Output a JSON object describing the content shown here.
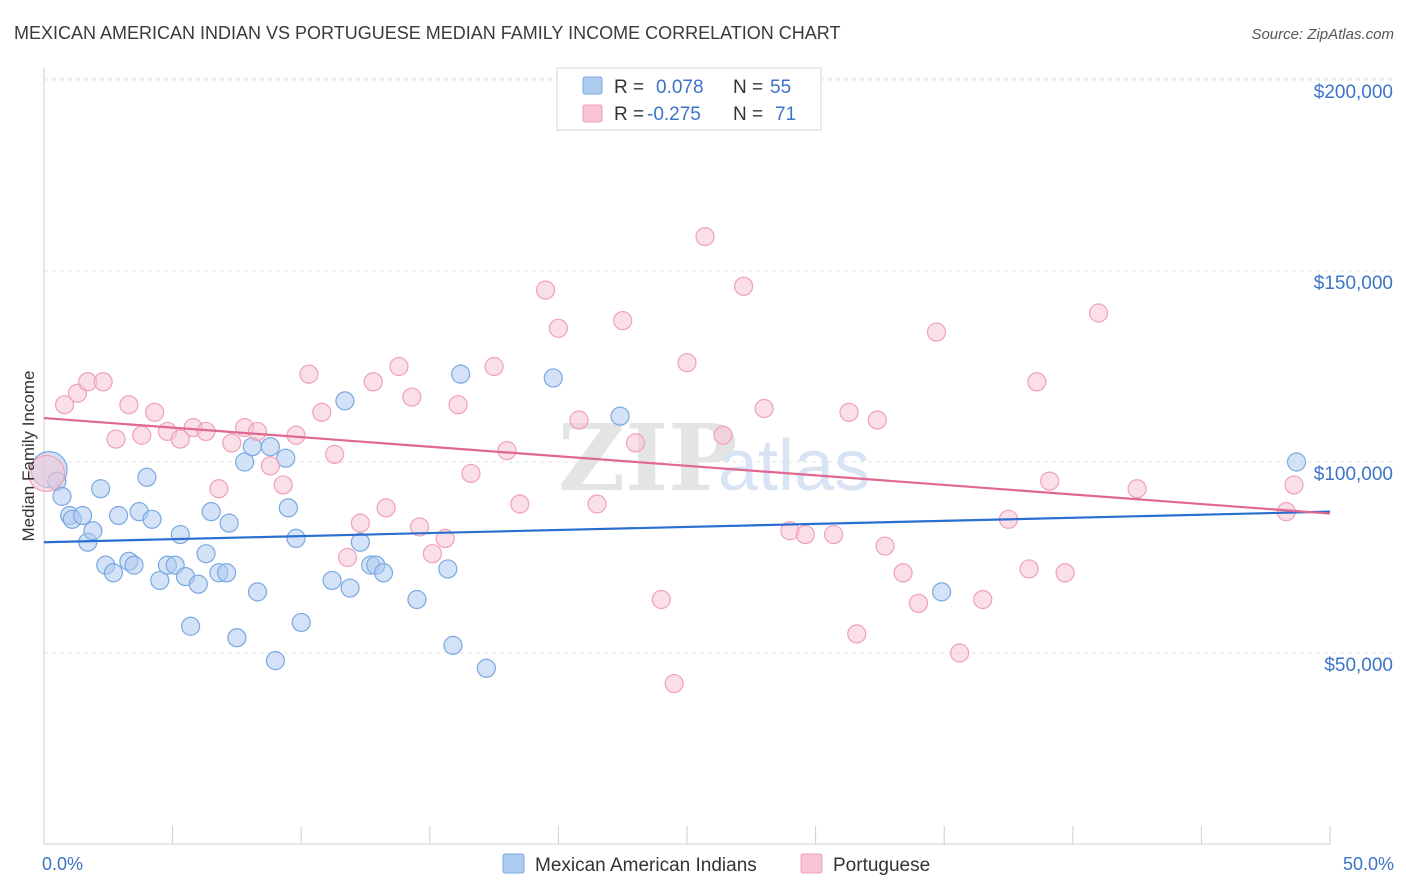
{
  "chart_data": {
    "type": "scatter",
    "title": "MEXICAN AMERICAN INDIAN VS PORTUGUESE MEDIAN FAMILY INCOME CORRELATION CHART",
    "source": "Source: ZipAtlas.com",
    "ylabel": "Median Family Income",
    "xlabel": "",
    "xlim": [
      0,
      50
    ],
    "ylim": [
      0,
      215000
    ],
    "x_tick_labels": [
      "0.0%",
      "50.0%"
    ],
    "y_ticks": [
      50000,
      100000,
      150000,
      200000
    ],
    "y_tick_labels": [
      "$50,000",
      "$100,000",
      "$150,000",
      "$200,000"
    ],
    "grid": true,
    "watermark": "ZIPatlas",
    "legend_top": [
      {
        "r_label": "R =",
        "r_value": "0.078",
        "n_label": "N =",
        "n_value": "55"
      },
      {
        "r_label": "R =",
        "r_value": "-0.275",
        "n_label": "N =",
        "n_value": "71"
      }
    ],
    "series": [
      {
        "name": "Mexican American Indians",
        "color": "#7aa8e0",
        "fill": "#aecbf0",
        "line_color": "#2a6fd0",
        "trend": {
          "x0": 0,
          "y0": 79000,
          "x1": 50,
          "y1": 87000
        },
        "points": [
          [
            0.2,
            98000
          ],
          [
            0.5,
            95000
          ],
          [
            0.7,
            91000
          ],
          [
            1.0,
            86000
          ],
          [
            1.1,
            85000
          ],
          [
            1.5,
            86000
          ],
          [
            1.7,
            79000
          ],
          [
            1.9,
            82000
          ],
          [
            2.2,
            93000
          ],
          [
            2.4,
            73000
          ],
          [
            2.7,
            71000
          ],
          [
            2.9,
            86000
          ],
          [
            3.3,
            74000
          ],
          [
            3.5,
            73000
          ],
          [
            3.7,
            87000
          ],
          [
            4.0,
            96000
          ],
          [
            4.2,
            85000
          ],
          [
            4.5,
            69000
          ],
          [
            4.8,
            73000
          ],
          [
            5.1,
            73000
          ],
          [
            5.3,
            81000
          ],
          [
            5.5,
            70000
          ],
          [
            5.7,
            57000
          ],
          [
            6.0,
            68000
          ],
          [
            6.3,
            76000
          ],
          [
            6.5,
            87000
          ],
          [
            6.8,
            71000
          ],
          [
            7.1,
            71000
          ],
          [
            7.2,
            84000
          ],
          [
            7.5,
            54000
          ],
          [
            7.8,
            100000
          ],
          [
            8.1,
            104000
          ],
          [
            8.3,
            66000
          ],
          [
            8.8,
            104000
          ],
          [
            9.0,
            48000
          ],
          [
            9.4,
            101000
          ],
          [
            9.5,
            88000
          ],
          [
            9.8,
            80000
          ],
          [
            10.0,
            58000
          ],
          [
            11.2,
            69000
          ],
          [
            11.7,
            116000
          ],
          [
            11.9,
            67000
          ],
          [
            12.3,
            79000
          ],
          [
            12.7,
            73000
          ],
          [
            12.9,
            73000
          ],
          [
            13.2,
            71000
          ],
          [
            14.5,
            64000
          ],
          [
            15.7,
            72000
          ],
          [
            15.9,
            52000
          ],
          [
            16.2,
            123000
          ],
          [
            17.2,
            46000
          ],
          [
            19.8,
            122000
          ],
          [
            22.4,
            112000
          ],
          [
            34.9,
            66000
          ],
          [
            48.7,
            100000
          ]
        ]
      },
      {
        "name": "Portuguese",
        "color": "#f0a0b8",
        "fill": "#f8c4d4",
        "line_color": "#e06890",
        "trend": {
          "x0": 0,
          "y0": 111500,
          "x1": 50,
          "y1": 86500
        },
        "points": [
          [
            0.1,
            97000
          ],
          [
            0.8,
            115000
          ],
          [
            1.3,
            118000
          ],
          [
            1.7,
            121000
          ],
          [
            2.3,
            121000
          ],
          [
            2.8,
            106000
          ],
          [
            3.3,
            115000
          ],
          [
            3.8,
            107000
          ],
          [
            4.3,
            113000
          ],
          [
            4.8,
            108000
          ],
          [
            5.3,
            106000
          ],
          [
            5.8,
            109000
          ],
          [
            6.3,
            108000
          ],
          [
            6.8,
            93000
          ],
          [
            7.3,
            105000
          ],
          [
            7.8,
            109000
          ],
          [
            8.3,
            108000
          ],
          [
            8.8,
            99000
          ],
          [
            9.3,
            94000
          ],
          [
            9.8,
            107000
          ],
          [
            10.3,
            123000
          ],
          [
            10.8,
            113000
          ],
          [
            11.3,
            102000
          ],
          [
            11.8,
            75000
          ],
          [
            12.3,
            84000
          ],
          [
            12.8,
            121000
          ],
          [
            13.3,
            88000
          ],
          [
            13.8,
            125000
          ],
          [
            14.3,
            117000
          ],
          [
            14.6,
            83000
          ],
          [
            15.1,
            76000
          ],
          [
            15.6,
            80000
          ],
          [
            16.1,
            115000
          ],
          [
            16.6,
            97000
          ],
          [
            17.5,
            125000
          ],
          [
            18.0,
            103000
          ],
          [
            18.5,
            89000
          ],
          [
            19.5,
            145000
          ],
          [
            20.0,
            135000
          ],
          [
            20.8,
            111000
          ],
          [
            21.5,
            89000
          ],
          [
            22.5,
            137000
          ],
          [
            23.0,
            105000
          ],
          [
            24.0,
            64000
          ],
          [
            24.5,
            42000
          ],
          [
            25.0,
            126000
          ],
          [
            25.7,
            159000
          ],
          [
            26.4,
            107000
          ],
          [
            27.2,
            146000
          ],
          [
            28.0,
            114000
          ],
          [
            29.0,
            82000
          ],
          [
            29.6,
            81000
          ],
          [
            30.7,
            81000
          ],
          [
            31.3,
            113000
          ],
          [
            31.6,
            55000
          ],
          [
            32.4,
            111000
          ],
          [
            32.7,
            78000
          ],
          [
            33.4,
            71000
          ],
          [
            34.0,
            63000
          ],
          [
            34.7,
            134000
          ],
          [
            35.6,
            50000
          ],
          [
            36.5,
            64000
          ],
          [
            37.5,
            85000
          ],
          [
            38.3,
            72000
          ],
          [
            38.6,
            121000
          ],
          [
            39.1,
            95000
          ],
          [
            39.7,
            71000
          ],
          [
            41.0,
            139000
          ],
          [
            42.5,
            93000
          ],
          [
            48.3,
            87000
          ],
          [
            48.6,
            94000
          ]
        ]
      }
    ]
  }
}
